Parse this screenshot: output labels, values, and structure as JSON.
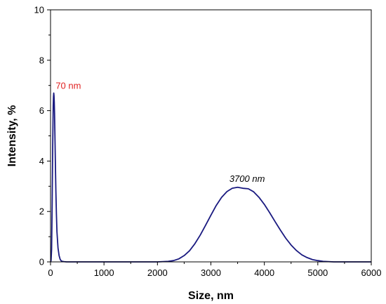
{
  "chart_data": {
    "type": "line",
    "title": "",
    "xlabel": "Size, nm",
    "ylabel": "Intensity, %",
    "xlim": [
      0,
      6000
    ],
    "ylim": [
      0,
      10
    ],
    "x_ticks": [
      0,
      1000,
      2000,
      3000,
      4000,
      5000,
      6000
    ],
    "y_ticks": [
      0,
      2,
      4,
      6,
      8,
      10
    ],
    "grid": false,
    "legend": "none",
    "series": [
      {
        "color": "#1a1a80",
        "x": [
          0,
          10,
          20,
          30,
          40,
          50,
          55,
          60,
          65,
          70,
          75,
          80,
          90,
          100,
          110,
          120,
          140,
          160,
          180,
          200,
          220,
          250,
          300,
          400,
          1000,
          2000,
          2200,
          2300,
          2400,
          2500,
          2600,
          2700,
          2800,
          2900,
          3000,
          3100,
          3200,
          3300,
          3400,
          3500,
          3600,
          3700,
          3800,
          3900,
          4000,
          4100,
          4200,
          4300,
          4400,
          4500,
          4600,
          4700,
          4800,
          4900,
          5000,
          5100,
          5200,
          5300,
          5400,
          5500,
          6000
        ],
        "y": [
          0,
          0.05,
          0.5,
          2.2,
          4.5,
          6.2,
          6.55,
          6.7,
          6.6,
          6.35,
          5.9,
          5.3,
          4.0,
          2.8,
          1.9,
          1.2,
          0.55,
          0.25,
          0.1,
          0.04,
          0.02,
          0.01,
          0,
          0,
          0,
          0,
          0.02,
          0.05,
          0.12,
          0.25,
          0.44,
          0.72,
          1.06,
          1.45,
          1.85,
          2.24,
          2.56,
          2.79,
          2.92,
          2.96,
          2.92,
          2.9,
          2.78,
          2.56,
          2.28,
          1.95,
          1.6,
          1.26,
          0.94,
          0.67,
          0.45,
          0.28,
          0.17,
          0.09,
          0.05,
          0.02,
          0.01,
          0,
          0,
          0,
          0
        ]
      }
    ],
    "annotations": [
      {
        "text": "70 nm",
        "x": 70,
        "y": 6.7,
        "color": "#e02020",
        "style": "normal"
      },
      {
        "text": "3700 nm",
        "x": 3700,
        "y": 2.9,
        "color": "#000000",
        "style": "italic"
      }
    ]
  }
}
